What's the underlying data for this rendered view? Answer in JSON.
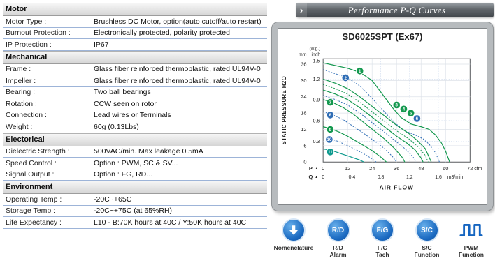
{
  "colors": {
    "curve_green": "#13984e",
    "curve_blue": "#2f6db5",
    "curve_teal": "#0e9a8e",
    "button_blue": "#1b6ac1",
    "row_line": "#9db4d8",
    "panel_gray": "#b7bbbe"
  },
  "spec_table": {
    "sections": [
      {
        "title": "Motor",
        "rows": [
          {
            "label": "Motor Type :",
            "value": "Brushless DC Motor, option(auto cutoff/auto restart)"
          },
          {
            "label": "Burnout Protection :",
            "value": "Electronically protected, polarity protected"
          },
          {
            "label": "IP Protection :",
            "value": "IP67"
          }
        ]
      },
      {
        "title": "Mechanical",
        "rows": [
          {
            "label": "Frame :",
            "value": "Glass fiber reinforced thermoplastic, rated UL94V-0"
          },
          {
            "label": "Impeller :",
            "value": "Glass fiber reinforced thermoplastic, rated UL94V-0"
          },
          {
            "label": "Bearing :",
            "value": "Two ball bearings"
          },
          {
            "label": "Rotation :",
            "value": "CCW seen on rotor"
          },
          {
            "label": "Connection :",
            "value": "Lead wires or Terminals"
          },
          {
            "label": "Weight :",
            "value": "60g (0.13Lbs)"
          }
        ]
      },
      {
        "title": "Electorical",
        "rows": [
          {
            "label": "Dielectric Strength :",
            "value": "500VAC/min. Max leakage 0.5mA"
          },
          {
            "label": "Speed Control :",
            "value": "Option : PWM, SC & SV..."
          },
          {
            "label": "Signal Output :",
            "value": "Option : FG, RD..."
          }
        ]
      },
      {
        "title": "Environment",
        "rows": [
          {
            "label": "Operating Temp :",
            "value": "-20C~+65C"
          },
          {
            "label": "Storage Temp :",
            "value": "-20C~+75C (at 65%RH)"
          },
          {
            "label": "Life Expectancy :",
            "value": "L10 - B:70K hours at 40C / Y:50K hours at 40C"
          }
        ]
      }
    ]
  },
  "performance": {
    "ribbon_title": "Performance P-Q Curves",
    "buttons": [
      {
        "icon": "down-arrow",
        "label_lines": [
          "Nomenclature"
        ]
      },
      {
        "icon": "R/D",
        "label_lines": [
          "R/D",
          "Alarm"
        ]
      },
      {
        "icon": "F/G",
        "label_lines": [
          "F/G",
          "Tach"
        ]
      },
      {
        "icon": "S/C",
        "label_lines": [
          "S/C",
          "Function"
        ]
      },
      {
        "icon": "pwm-wave",
        "label_lines": [
          "PWM",
          "Function"
        ]
      }
    ]
  },
  "chart_data": {
    "type": "line",
    "title": "SD6025SPT (Ex67)",
    "pointer_marker": "▲",
    "x_axis": {
      "label": "AIR FLOW",
      "pointer": "Q",
      "primary": {
        "unit": "cfm",
        "ticks": [
          0,
          12,
          24,
          36,
          48,
          60,
          72
        ],
        "max": 72
      },
      "secondary": {
        "unit": "m3/min",
        "ticks": [
          0,
          0.4,
          0.8,
          1.2,
          1.6
        ]
      }
    },
    "y_axis": {
      "label": "STATIC PRESSURE H2O",
      "pointer": "P",
      "primary": {
        "unit": "mm",
        "ticks": [
          0,
          6,
          12,
          18,
          24,
          30,
          36
        ],
        "max": 38
      },
      "secondary": {
        "unit_lines": [
          "(w.g.)",
          "inch"
        ],
        "ticks": [
          0.3,
          0.6,
          0.9,
          1.2,
          1.5
        ]
      }
    },
    "series": [
      {
        "name": "1",
        "color": "#13984e",
        "dash": false,
        "label_at": [
          18,
          33.5
        ],
        "points": [
          [
            0,
            36.5
          ],
          [
            6,
            35.5
          ],
          [
            12,
            34.5
          ],
          [
            18,
            33
          ],
          [
            24,
            30
          ],
          [
            29,
            25
          ],
          [
            34,
            20
          ],
          [
            38,
            16.5
          ],
          [
            43,
            14
          ],
          [
            48,
            13
          ],
          [
            52,
            12
          ],
          [
            55,
            10
          ],
          [
            58,
            7
          ],
          [
            60,
            4
          ],
          [
            62,
            0
          ]
        ]
      },
      {
        "name": "2",
        "color": "#2f6db5",
        "dash": true,
        "label_at": [
          11,
          31
        ],
        "points": [
          [
            0,
            34
          ],
          [
            6,
            32.5
          ],
          [
            12,
            31
          ],
          [
            18,
            28
          ],
          [
            24,
            23.5
          ],
          [
            30,
            18.5
          ],
          [
            35,
            14.5
          ],
          [
            40,
            11.5
          ],
          [
            45,
            10
          ],
          [
            49,
            8.5
          ],
          [
            52,
            6.5
          ],
          [
            55,
            3.5
          ],
          [
            57,
            0
          ]
        ]
      },
      {
        "name": "3",
        "color": "#13984e",
        "dash": false,
        "label_at": [
          36,
          21
        ],
        "points": [
          [
            0,
            30.5
          ],
          [
            6,
            29
          ],
          [
            12,
            27
          ],
          [
            18,
            24
          ],
          [
            24,
            20.5
          ],
          [
            30,
            17
          ],
          [
            36,
            13.5
          ],
          [
            42,
            10.5
          ],
          [
            46,
            8
          ],
          [
            50,
            5
          ],
          [
            53,
            0
          ]
        ]
      },
      {
        "name": "4",
        "color": "#13984e",
        "dash": true,
        "label_at": [
          39.5,
          19.5
        ],
        "points": [
          [
            0,
            28.5
          ],
          [
            6,
            27
          ],
          [
            12,
            25
          ],
          [
            18,
            22
          ],
          [
            24,
            18.5
          ],
          [
            30,
            15
          ],
          [
            36,
            11.5
          ],
          [
            42,
            8.5
          ],
          [
            46,
            6
          ],
          [
            50,
            2.5
          ],
          [
            51.5,
            0
          ]
        ]
      },
      {
        "name": "5",
        "color": "#13984e",
        "dash": false,
        "label_at": [
          43,
          18
        ],
        "points": [
          [
            0,
            26.5
          ],
          [
            6,
            25
          ],
          [
            12,
            23
          ],
          [
            18,
            20
          ],
          [
            24,
            16.5
          ],
          [
            30,
            13
          ],
          [
            36,
            9.5
          ],
          [
            41,
            7
          ],
          [
            45,
            4.5
          ],
          [
            48,
            1.5
          ],
          [
            49,
            0
          ]
        ]
      },
      {
        "name": "6",
        "color": "#2f6db5",
        "dash": true,
        "label_at": [
          46,
          16
        ],
        "points": [
          [
            0,
            24.5
          ],
          [
            6,
            23
          ],
          [
            12,
            21
          ],
          [
            18,
            18
          ],
          [
            24,
            14.5
          ],
          [
            30,
            11
          ],
          [
            35,
            8
          ],
          [
            40,
            5
          ],
          [
            44,
            2
          ],
          [
            45.5,
            0
          ]
        ]
      },
      {
        "name": "7",
        "color": "#13984e",
        "dash": false,
        "label_at": [
          3.5,
          22
        ],
        "points": [
          [
            0,
            23
          ],
          [
            5,
            21.8
          ],
          [
            10,
            20
          ],
          [
            15,
            17.5
          ],
          [
            20,
            14.5
          ],
          [
            25,
            11.5
          ],
          [
            30,
            8.5
          ],
          [
            35,
            5
          ],
          [
            39,
            1.5
          ],
          [
            40,
            0
          ]
        ]
      },
      {
        "name": "8",
        "color": "#2f6db5",
        "dash": true,
        "label_at": [
          3.5,
          17.3
        ],
        "points": [
          [
            0,
            18.5
          ],
          [
            5,
            17.3
          ],
          [
            10,
            15.5
          ],
          [
            15,
            13
          ],
          [
            20,
            10.5
          ],
          [
            25,
            7.8
          ],
          [
            30,
            5
          ],
          [
            34,
            2
          ],
          [
            36,
            0
          ]
        ]
      },
      {
        "name": "9",
        "color": "#13984e",
        "dash": false,
        "label_at": [
          3.5,
          12
        ],
        "points": [
          [
            0,
            13
          ],
          [
            4,
            12.2
          ],
          [
            8,
            11
          ],
          [
            12,
            9.5
          ],
          [
            16,
            7.8
          ],
          [
            20,
            6
          ],
          [
            24,
            4.2
          ],
          [
            28,
            2
          ],
          [
            31,
            0
          ]
        ]
      },
      {
        "name": "10",
        "color": "#2f6db5",
        "dash": true,
        "label_at": [
          3,
          8.3
        ],
        "points": [
          [
            0,
            9.2
          ],
          [
            4,
            8.5
          ],
          [
            8,
            7.4
          ],
          [
            12,
            6
          ],
          [
            16,
            4.6
          ],
          [
            20,
            3
          ],
          [
            24,
            1.2
          ],
          [
            26,
            0
          ]
        ]
      },
      {
        "name": "11",
        "color": "#0e9a8e",
        "dash": false,
        "label_at": [
          3.5,
          3.7
        ],
        "points": [
          [
            0,
            4.8
          ],
          [
            3,
            4.4
          ],
          [
            6,
            3.8
          ],
          [
            9,
            3
          ],
          [
            12,
            2.3
          ],
          [
            15,
            1.5
          ],
          [
            18,
            0.7
          ],
          [
            20,
            0
          ]
        ]
      }
    ]
  }
}
